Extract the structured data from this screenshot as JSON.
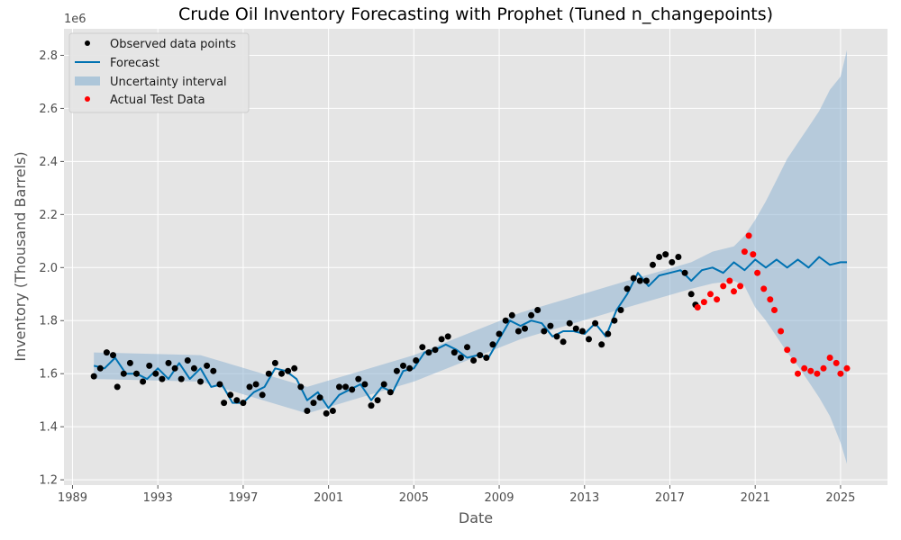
{
  "chart_data": {
    "type": "line",
    "title": "Crude Oil Inventory Forecasting with Prophet (Tuned n_changepoints)",
    "xlabel": "Date",
    "ylabel": "Inventory (Thousand Barrels)",
    "y_offset_label": "1e6",
    "xlim": [
      1988.6,
      2027.2
    ],
    "ylim": [
      1.18,
      2.9
    ],
    "x_ticks": [
      1989,
      1993,
      1997,
      2001,
      2005,
      2009,
      2013,
      2017,
      2021,
      2025
    ],
    "y_ticks": [
      1.2,
      1.4,
      1.6,
      1.8,
      2.0,
      2.2,
      2.4,
      2.6,
      2.8
    ],
    "grid": true,
    "legend_position": "top-left",
    "series": [
      {
        "name": "Observed data points",
        "kind": "scatter",
        "color": "#000000",
        "x": [
          1990.0,
          1990.3,
          1990.6,
          1990.9,
          1991.1,
          1991.4,
          1991.7,
          1992.0,
          1992.3,
          1992.6,
          1992.9,
          1993.2,
          1993.5,
          1993.8,
          1994.1,
          1994.4,
          1994.7,
          1995.0,
          1995.3,
          1995.6,
          1995.9,
          1996.1,
          1996.4,
          1996.7,
          1997.0,
          1997.3,
          1997.6,
          1997.9,
          1998.2,
          1998.5,
          1998.8,
          1999.1,
          1999.4,
          1999.7,
          2000.0,
          2000.3,
          2000.6,
          2000.9,
          2001.2,
          2001.5,
          2001.8,
          2002.1,
          2002.4,
          2002.7,
          2003.0,
          2003.3,
          2003.6,
          2003.9,
          2004.2,
          2004.5,
          2004.8,
          2005.1,
          2005.4,
          2005.7,
          2006.0,
          2006.3,
          2006.6,
          2006.9,
          2007.2,
          2007.5,
          2007.8,
          2008.1,
          2008.4,
          2008.7,
          2009.0,
          2009.3,
          2009.6,
          2009.9,
          2010.2,
          2010.5,
          2010.8,
          2011.1,
          2011.4,
          2011.7,
          2012.0,
          2012.3,
          2012.6,
          2012.9,
          2013.2,
          2013.5,
          2013.8,
          2014.1,
          2014.4,
          2014.7,
          2015.0,
          2015.3,
          2015.6,
          2015.9,
          2016.2,
          2016.5,
          2016.8,
          2017.1,
          2017.4,
          2017.7,
          2018.0,
          2018.2
        ],
        "y": [
          1.59,
          1.62,
          1.68,
          1.67,
          1.55,
          1.6,
          1.64,
          1.6,
          1.57,
          1.63,
          1.6,
          1.58,
          1.64,
          1.62,
          1.58,
          1.65,
          1.62,
          1.57,
          1.63,
          1.61,
          1.56,
          1.49,
          1.52,
          1.5,
          1.49,
          1.55,
          1.56,
          1.52,
          1.6,
          1.64,
          1.6,
          1.61,
          1.62,
          1.55,
          1.46,
          1.49,
          1.51,
          1.45,
          1.46,
          1.55,
          1.55,
          1.54,
          1.58,
          1.56,
          1.48,
          1.5,
          1.56,
          1.53,
          1.61,
          1.63,
          1.62,
          1.65,
          1.7,
          1.68,
          1.69,
          1.73,
          1.74,
          1.68,
          1.66,
          1.7,
          1.65,
          1.67,
          1.66,
          1.71,
          1.75,
          1.8,
          1.82,
          1.76,
          1.77,
          1.82,
          1.84,
          1.76,
          1.78,
          1.74,
          1.72,
          1.79,
          1.77,
          1.76,
          1.73,
          1.79,
          1.71,
          1.75,
          1.8,
          1.84,
          1.92,
          1.96,
          1.95,
          1.95,
          2.01,
          2.04,
          2.05,
          2.02,
          2.04,
          1.98,
          1.9,
          1.86
        ]
      },
      {
        "name": "Forecast",
        "kind": "line",
        "color": "#0072B2",
        "x": [
          1990.0,
          1990.5,
          1991.0,
          1991.5,
          1992.0,
          1992.5,
          1993.0,
          1993.5,
          1994.0,
          1994.5,
          1995.0,
          1995.5,
          1996.0,
          1996.5,
          1997.0,
          1997.5,
          1998.0,
          1998.5,
          1999.0,
          1999.5,
          2000.0,
          2000.5,
          2001.0,
          2001.5,
          2002.0,
          2002.5,
          2003.0,
          2003.5,
          2004.0,
          2004.5,
          2005.0,
          2005.5,
          2006.0,
          2006.5,
          2007.0,
          2007.5,
          2008.0,
          2008.5,
          2009.0,
          2009.5,
          2010.0,
          2010.5,
          2011.0,
          2011.5,
          2012.0,
          2012.5,
          2013.0,
          2013.5,
          2014.0,
          2014.5,
          2015.0,
          2015.5,
          2016.0,
          2016.5,
          2017.0,
          2017.5,
          2018.0,
          2018.5,
          2019.0,
          2019.5,
          2020.0,
          2020.5,
          2021.0,
          2021.5,
          2022.0,
          2022.5,
          2023.0,
          2023.5,
          2024.0,
          2024.5,
          2025.0,
          2025.3
        ],
        "y": [
          1.63,
          1.62,
          1.66,
          1.6,
          1.6,
          1.58,
          1.62,
          1.58,
          1.64,
          1.58,
          1.62,
          1.55,
          1.56,
          1.49,
          1.49,
          1.53,
          1.55,
          1.62,
          1.61,
          1.58,
          1.5,
          1.53,
          1.47,
          1.52,
          1.54,
          1.56,
          1.5,
          1.55,
          1.53,
          1.61,
          1.62,
          1.68,
          1.69,
          1.71,
          1.69,
          1.66,
          1.67,
          1.66,
          1.73,
          1.8,
          1.78,
          1.8,
          1.79,
          1.74,
          1.76,
          1.76,
          1.75,
          1.79,
          1.74,
          1.84,
          1.9,
          1.98,
          1.93,
          1.97,
          1.98,
          1.99,
          1.95,
          1.99,
          2.0,
          1.98,
          2.02,
          1.99,
          2.03,
          2.0,
          2.03,
          2.0,
          2.03,
          2.0,
          2.04,
          2.01,
          2.02,
          2.02
        ]
      },
      {
        "name": "Uncertainty interval",
        "kind": "band",
        "color": "#8fb5d3",
        "x": [
          1990.0,
          1995.0,
          2000.0,
          2005.0,
          2010.0,
          2015.0,
          2018.0,
          2019.0,
          2020.0,
          2020.5,
          2021.0,
          2021.5,
          2022.0,
          2022.5,
          2023.0,
          2023.5,
          2024.0,
          2024.5,
          2025.0,
          2025.3
        ],
        "lower": [
          1.58,
          1.57,
          1.45,
          1.57,
          1.73,
          1.85,
          1.92,
          1.94,
          1.95,
          1.93,
          1.85,
          1.8,
          1.74,
          1.68,
          1.63,
          1.57,
          1.51,
          1.44,
          1.34,
          1.26
        ],
        "upper": [
          1.68,
          1.67,
          1.55,
          1.67,
          1.83,
          1.95,
          2.02,
          2.06,
          2.08,
          2.12,
          2.18,
          2.25,
          2.33,
          2.41,
          2.47,
          2.53,
          2.59,
          2.67,
          2.72,
          2.82
        ]
      },
      {
        "name": "Actual Test Data",
        "kind": "scatter",
        "color": "#ff0000",
        "x": [
          2018.3,
          2018.6,
          2018.9,
          2019.2,
          2019.5,
          2019.8,
          2020.0,
          2020.3,
          2020.5,
          2020.7,
          2020.9,
          2021.1,
          2021.4,
          2021.7,
          2021.9,
          2022.2,
          2022.5,
          2022.8,
          2023.0,
          2023.3,
          2023.6,
          2023.9,
          2024.2,
          2024.5,
          2024.8,
          2025.0,
          2025.3
        ],
        "y": [
          1.85,
          1.87,
          1.9,
          1.88,
          1.93,
          1.95,
          1.91,
          1.93,
          2.06,
          2.12,
          2.05,
          1.98,
          1.92,
          1.88,
          1.84,
          1.76,
          1.69,
          1.65,
          1.6,
          1.62,
          1.61,
          1.6,
          1.62,
          1.66,
          1.64,
          1.6,
          1.62
        ]
      }
    ]
  }
}
